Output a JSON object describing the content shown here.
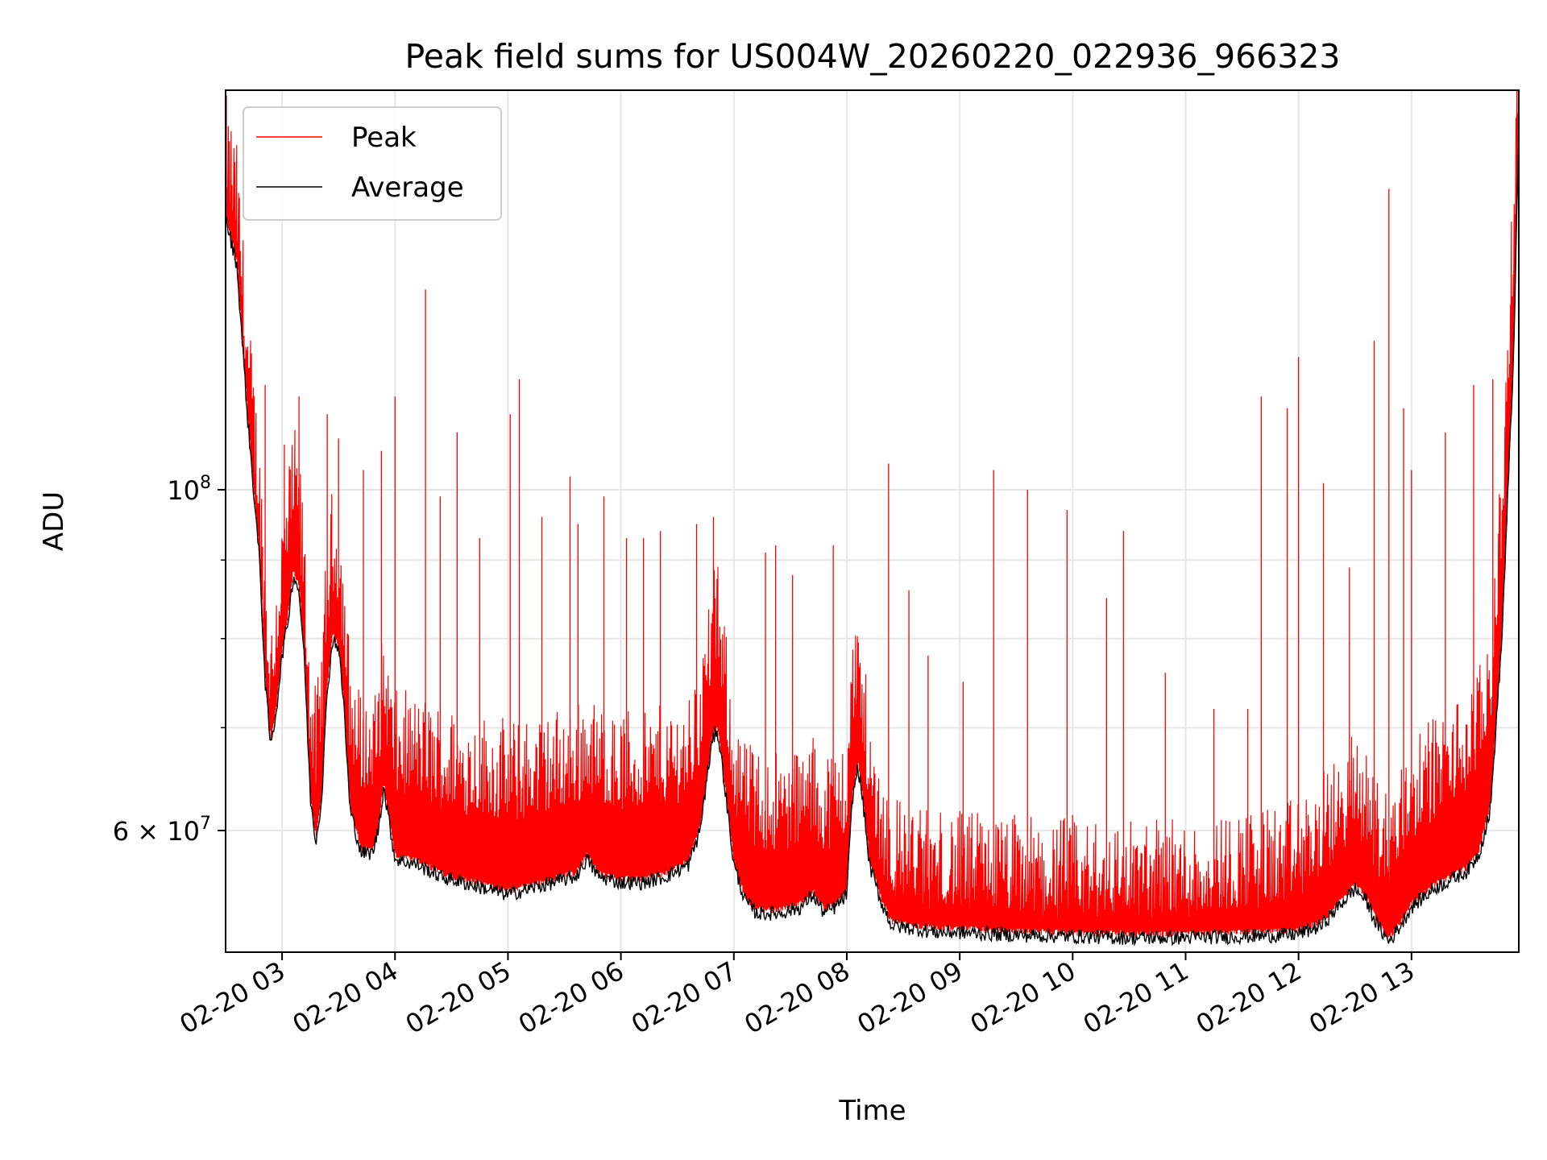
{
  "chart_data": {
    "type": "line",
    "title": "Peak field sums for US004W_20260220_022936_966323",
    "xlabel": "Time",
    "ylabel": "ADU",
    "yscale": "log",
    "xlim_hours": [
      2.5,
      13.95
    ],
    "ylim": [
      50000000,
      182000000
    ],
    "x_ticks": [
      {
        "value": 3,
        "label": "02-20 03"
      },
      {
        "value": 4,
        "label": "02-20 04"
      },
      {
        "value": 5,
        "label": "02-20 05"
      },
      {
        "value": 6,
        "label": "02-20 06"
      },
      {
        "value": 7,
        "label": "02-20 07"
      },
      {
        "value": 8,
        "label": "02-20 08"
      },
      {
        "value": 9,
        "label": "02-20 09"
      },
      {
        "value": 10,
        "label": "02-20 10"
      },
      {
        "value": 11,
        "label": "02-20 11"
      },
      {
        "value": 12,
        "label": "02-20 12"
      },
      {
        "value": 13,
        "label": "02-20 13"
      }
    ],
    "y_ticks": [
      {
        "value": 100000000,
        "base": "10",
        "exp": "8"
      },
      {
        "value": 60000000,
        "base": "6 × 10",
        "exp": "7"
      }
    ],
    "y_minor_ticks": [
      70000000,
      80000000,
      90000000
    ],
    "grid": true,
    "legend": {
      "position": "top-left",
      "entries": [
        {
          "name": "Peak",
          "color": "#ff0000"
        },
        {
          "name": "Average",
          "color": "#000000"
        }
      ]
    },
    "series": [
      {
        "name": "Average",
        "color": "#000000",
        "x": [
          2.5,
          2.6,
          2.7,
          2.8,
          2.85,
          2.9,
          2.95,
          3.0,
          3.05,
          3.1,
          3.15,
          3.2,
          3.25,
          3.3,
          3.35,
          3.4,
          3.45,
          3.5,
          3.55,
          3.6,
          3.7,
          3.8,
          3.85,
          3.9,
          4.0,
          4.2,
          4.4,
          4.6,
          4.8,
          5.0,
          5.2,
          5.4,
          5.6,
          5.7,
          5.8,
          6.0,
          6.2,
          6.4,
          6.6,
          6.7,
          6.8,
          6.85,
          6.9,
          7.0,
          7.1,
          7.2,
          7.4,
          7.6,
          7.7,
          7.8,
          7.9,
          8.0,
          8.05,
          8.1,
          8.15,
          8.2,
          8.3,
          8.4,
          8.6,
          8.8,
          9.0,
          9.5,
          10.0,
          10.5,
          11.0,
          11.5,
          11.9,
          12.0,
          12.2,
          12.4,
          12.5,
          12.6,
          12.7,
          12.8,
          12.9,
          13.0,
          13.2,
          13.4,
          13.5,
          13.6,
          13.7,
          13.8,
          13.9,
          13.95
        ],
        "values": [
          150000000,
          140000000,
          110000000,
          90000000,
          75000000,
          68000000,
          72000000,
          78000000,
          82000000,
          88000000,
          86000000,
          77000000,
          63000000,
          59000000,
          63000000,
          74000000,
          80000000,
          79000000,
          72000000,
          62000000,
          58000000,
          58000000,
          60000000,
          64000000,
          57500000,
          57000000,
          56000000,
          55500000,
          55000000,
          54500000,
          55000000,
          55500000,
          56000000,
          57500000,
          56000000,
          55500000,
          55500000,
          56000000,
          57000000,
          60000000,
          68000000,
          70000000,
          66000000,
          57000000,
          54000000,
          53000000,
          53000000,
          53500000,
          54500000,
          53000000,
          53500000,
          54500000,
          63000000,
          66000000,
          62000000,
          57000000,
          54000000,
          52000000,
          51800000,
          51500000,
          51500000,
          51300000,
          51200000,
          51100000,
          51100000,
          51200000,
          51300000,
          51400000,
          52000000,
          54000000,
          55000000,
          54000000,
          52000000,
          50800000,
          52000000,
          53500000,
          55000000,
          56000000,
          56500000,
          58000000,
          62000000,
          80000000,
          120000000,
          170000000
        ]
      },
      {
        "name": "Peak",
        "color": "#ff0000",
        "x": [
          2.5,
          2.6,
          2.7,
          2.8,
          2.85,
          2.9,
          2.95,
          3.0,
          3.05,
          3.1,
          3.15,
          3.2,
          3.25,
          3.3,
          3.35,
          3.4,
          3.45,
          3.5,
          3.55,
          3.6,
          3.7,
          3.8,
          3.85,
          3.9,
          4.0,
          4.2,
          4.4,
          4.6,
          4.8,
          5.0,
          5.2,
          5.4,
          5.6,
          5.7,
          5.8,
          6.0,
          6.2,
          6.4,
          6.6,
          6.7,
          6.8,
          6.85,
          6.9,
          7.0,
          7.1,
          7.2,
          7.4,
          7.6,
          7.7,
          7.8,
          7.9,
          8.0,
          8.05,
          8.1,
          8.15,
          8.2,
          8.3,
          8.4,
          8.6,
          8.8,
          9.0,
          9.5,
          10.0,
          10.5,
          11.0,
          11.5,
          11.9,
          12.0,
          12.2,
          12.4,
          12.5,
          12.6,
          12.7,
          12.8,
          12.9,
          13.0,
          13.2,
          13.4,
          13.5,
          13.6,
          13.7,
          13.8,
          13.9,
          13.95
        ],
        "values": [
          155000000,
          144000000,
          113000000,
          93000000,
          78000000,
          71000000,
          76000000,
          83000000,
          88000000,
          94000000,
          91000000,
          81000000,
          67000000,
          63000000,
          68000000,
          80000000,
          86000000,
          84000000,
          77000000,
          67000000,
          63000000,
          63000000,
          65000000,
          70000000,
          63000000,
          63000000,
          62000000,
          61500000,
          61000000,
          60500000,
          61000000,
          61500000,
          62000000,
          63500000,
          62000000,
          61500000,
          61500000,
          62000000,
          63000000,
          66000000,
          75000000,
          77000000,
          72000000,
          62000000,
          59000000,
          58000000,
          58000000,
          58500000,
          59500000,
          58000000,
          58500000,
          59500000,
          69000000,
          72000000,
          67000000,
          61000000,
          57000000,
          54000000,
          53500000,
          53000000,
          53000000,
          52500000,
          52300000,
          52300000,
          52500000,
          53000000,
          53500000,
          54000000,
          55500000,
          58000000,
          59500000,
          58500000,
          56000000,
          54500000,
          57000000,
          59000000,
          61000000,
          62500000,
          63500000,
          65500000,
          70000000,
          90000000,
          135000000,
          180000000
        ],
        "spikes": [
          {
            "x": 2.58,
            "value": 141000000
          },
          {
            "x": 2.73,
            "value": 106000000
          },
          {
            "x": 2.85,
            "value": 117000000
          },
          {
            "x": 3.02,
            "value": 107000000
          },
          {
            "x": 3.15,
            "value": 115000000
          },
          {
            "x": 3.4,
            "value": 112000000
          },
          {
            "x": 3.5,
            "value": 108000000
          },
          {
            "x": 3.72,
            "value": 103000000
          },
          {
            "x": 3.88,
            "value": 106000000
          },
          {
            "x": 4.0,
            "value": 115000000
          },
          {
            "x": 4.27,
            "value": 135000000
          },
          {
            "x": 4.4,
            "value": 99000000
          },
          {
            "x": 4.55,
            "value": 109000000
          },
          {
            "x": 4.75,
            "value": 93000000
          },
          {
            "x": 5.02,
            "value": 112000000
          },
          {
            "x": 5.1,
            "value": 118000000
          },
          {
            "x": 5.3,
            "value": 96000000
          },
          {
            "x": 5.55,
            "value": 102000000
          },
          {
            "x": 5.62,
            "value": 95000000
          },
          {
            "x": 5.85,
            "value": 99000000
          },
          {
            "x": 6.05,
            "value": 93000000
          },
          {
            "x": 6.2,
            "value": 93000000
          },
          {
            "x": 6.35,
            "value": 94000000
          },
          {
            "x": 6.67,
            "value": 95000000
          },
          {
            "x": 6.82,
            "value": 96000000
          },
          {
            "x": 7.28,
            "value": 91000000
          },
          {
            "x": 7.37,
            "value": 92000000
          },
          {
            "x": 7.52,
            "value": 88000000
          },
          {
            "x": 7.88,
            "value": 92000000
          },
          {
            "x": 8.37,
            "value": 104000000
          },
          {
            "x": 8.55,
            "value": 86000000
          },
          {
            "x": 8.72,
            "value": 78000000
          },
          {
            "x": 9.03,
            "value": 75000000
          },
          {
            "x": 9.3,
            "value": 103000000
          },
          {
            "x": 9.6,
            "value": 100000000
          },
          {
            "x": 9.95,
            "value": 97000000
          },
          {
            "x": 10.3,
            "value": 85000000
          },
          {
            "x": 10.45,
            "value": 94000000
          },
          {
            "x": 10.82,
            "value": 76000000
          },
          {
            "x": 11.25,
            "value": 72000000
          },
          {
            "x": 11.55,
            "value": 72000000
          },
          {
            "x": 11.67,
            "value": 115000000
          },
          {
            "x": 11.9,
            "value": 113000000
          },
          {
            "x": 12.0,
            "value": 122000000
          },
          {
            "x": 12.22,
            "value": 101000000
          },
          {
            "x": 12.45,
            "value": 89000000
          },
          {
            "x": 12.67,
            "value": 125000000
          },
          {
            "x": 12.8,
            "value": 157000000
          },
          {
            "x": 12.93,
            "value": 113000000
          },
          {
            "x": 13.0,
            "value": 103000000
          },
          {
            "x": 13.3,
            "value": 109000000
          },
          {
            "x": 13.55,
            "value": 117000000
          },
          {
            "x": 13.72,
            "value": 118000000
          }
        ]
      }
    ]
  }
}
